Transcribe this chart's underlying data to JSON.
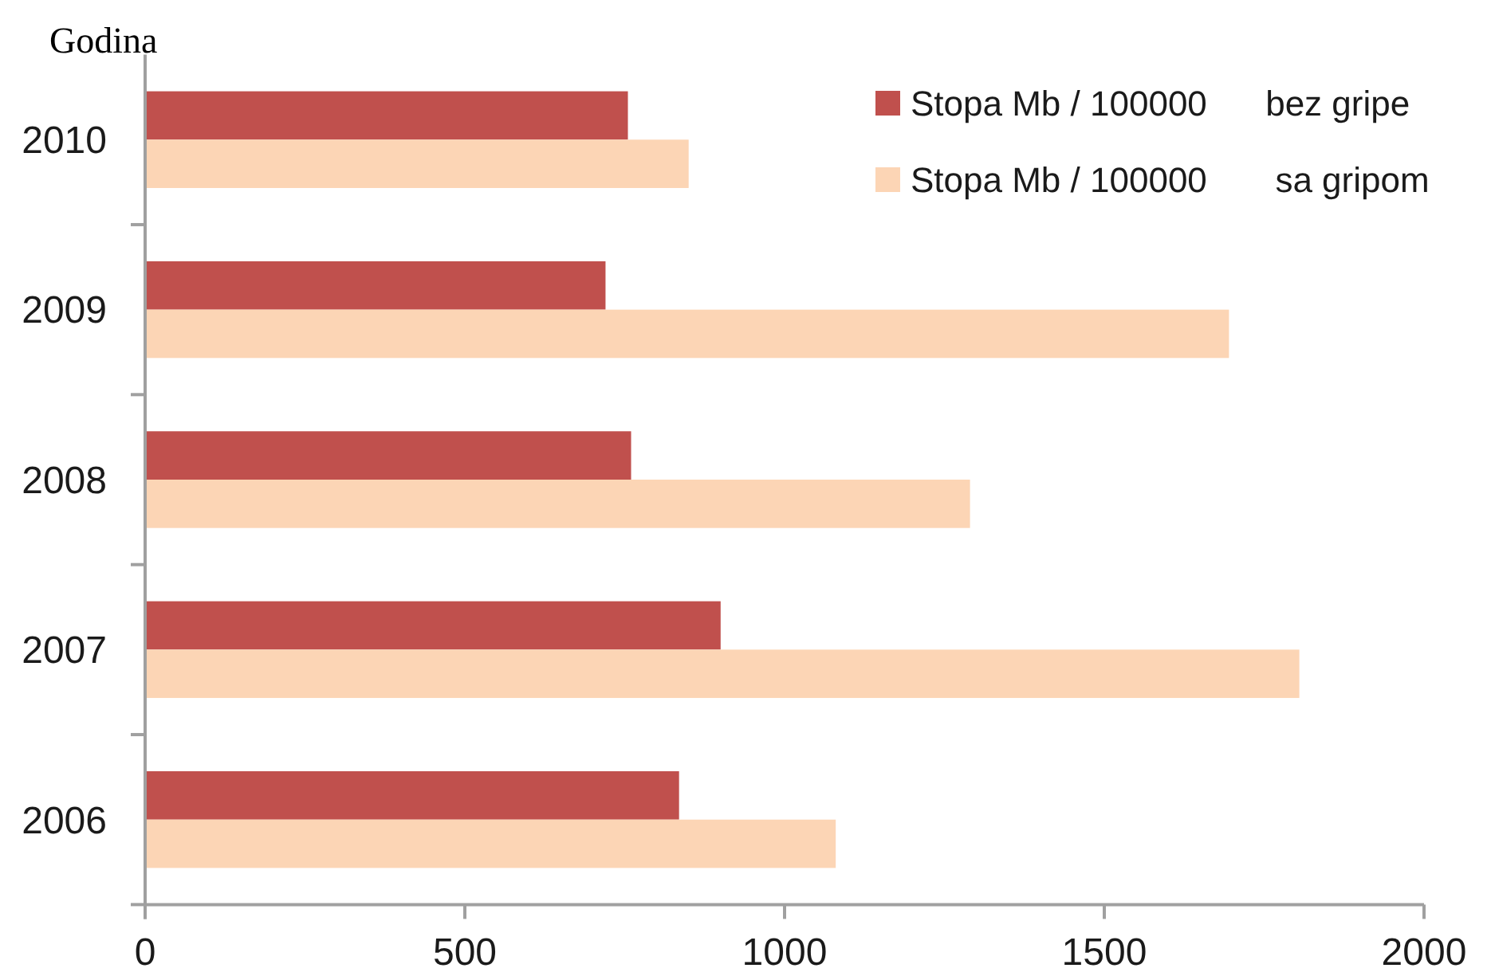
{
  "chart_data": {
    "type": "bar",
    "orientation": "horizontal",
    "ylabel": "Godina",
    "categories": [
      "2010",
      "2009",
      "2008",
      "2007",
      "2006"
    ],
    "series": [
      {
        "name": "Stopa Mb / 100000      bez gripe",
        "color": "#c0504d",
        "values": [
          755,
          720,
          760,
          900,
          835
        ]
      },
      {
        "name": "Stopa Mb / 100000       sa gripom",
        "color": "#fcd5b5",
        "values": [
          850,
          1695,
          1290,
          1805,
          1080
        ]
      }
    ],
    "xlim": [
      0,
      2000
    ],
    "xticks": [
      0,
      500,
      1000,
      1500,
      2000
    ],
    "legend": "top right"
  }
}
